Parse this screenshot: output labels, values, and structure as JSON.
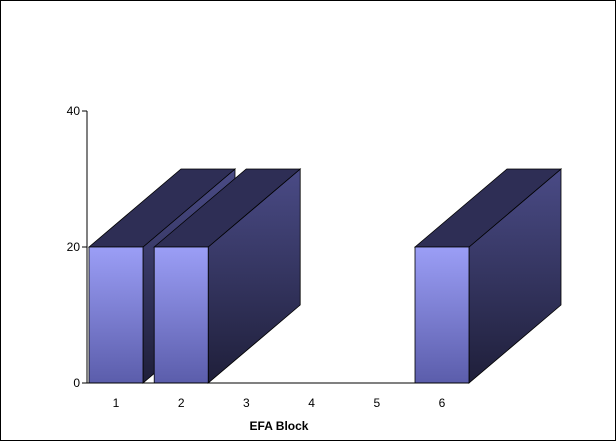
{
  "chart_data": {
    "type": "bar",
    "style": "3d",
    "categories": [
      "1",
      "2",
      "3",
      "4",
      "5",
      "6"
    ],
    "values": [
      20,
      20,
      0,
      0,
      0,
      20
    ],
    "title": "",
    "xlabel": "EFA Block",
    "ylabel": "",
    "ylim": [
      0,
      40
    ],
    "yticks": [
      0,
      20,
      40
    ],
    "grid": false,
    "legend": "none",
    "colors": {
      "front_top": "#9b9ef6",
      "front_bottom": "#5b5dab",
      "side_top": "#4a4b86",
      "side_bottom": "#1f1f3a",
      "top_face": "#2e2e55"
    }
  }
}
